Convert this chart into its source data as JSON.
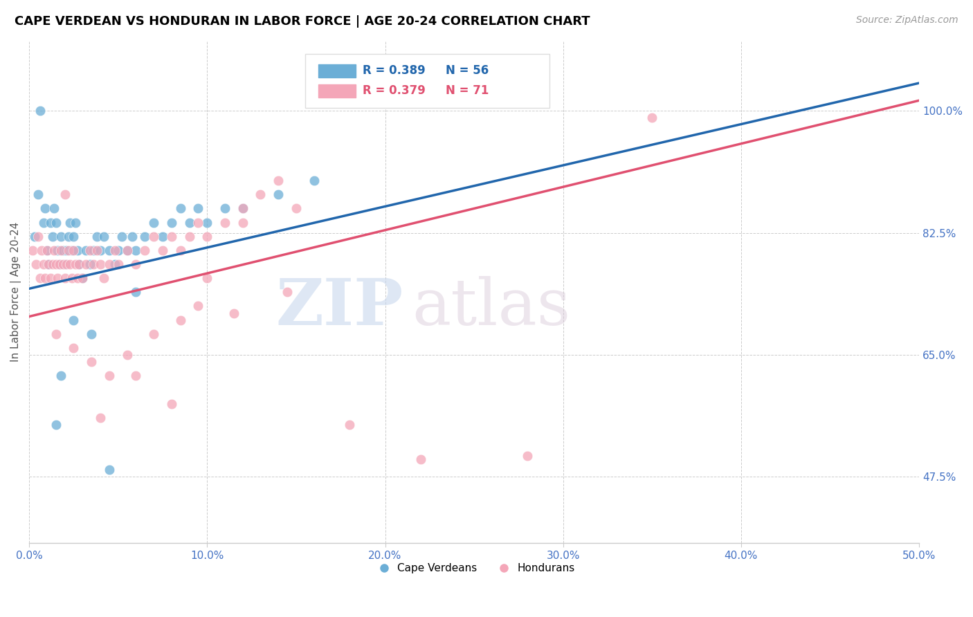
{
  "title": "CAPE VERDEAN VS HONDURAN IN LABOR FORCE | AGE 20-24 CORRELATION CHART",
  "source": "Source: ZipAtlas.com",
  "ylabel": "In Labor Force | Age 20-24",
  "xlim": [
    0.0,
    50.0
  ],
  "ylim": [
    38.0,
    110.0
  ],
  "yticks": [
    47.5,
    65.0,
    82.5,
    100.0
  ],
  "xticks": [
    0.0,
    10.0,
    20.0,
    30.0,
    40.0,
    50.0
  ],
  "xtick_labels": [
    "0.0%",
    "10.0%",
    "20.0%",
    "30.0%",
    "40.0%",
    "50.0%"
  ],
  "ytick_labels": [
    "47.5%",
    "65.0%",
    "82.5%",
    "100.0%"
  ],
  "blue_R": 0.389,
  "blue_N": 56,
  "pink_R": 0.379,
  "pink_N": 71,
  "blue_color": "#6baed6",
  "pink_color": "#f4a6b8",
  "blue_line_color": "#2166ac",
  "pink_line_color": "#e05070",
  "legend_label_blue": "Cape Verdeans",
  "legend_label_pink": "Hondurans",
  "watermark_zip": "ZIP",
  "watermark_atlas": "atlas",
  "title_fontsize": 13,
  "source_fontsize": 10,
  "blue_scatter_x": [
    0.3,
    0.5,
    0.6,
    0.8,
    0.9,
    1.0,
    1.1,
    1.2,
    1.3,
    1.4,
    1.5,
    1.6,
    1.7,
    1.8,
    1.9,
    2.0,
    2.1,
    2.2,
    2.3,
    2.4,
    2.5,
    2.6,
    2.7,
    2.8,
    3.0,
    3.2,
    3.4,
    3.6,
    3.8,
    4.0,
    4.2,
    4.5,
    4.8,
    5.0,
    5.2,
    5.5,
    5.8,
    6.0,
    6.5,
    7.0,
    7.5,
    8.0,
    8.5,
    9.0,
    9.5,
    10.0,
    11.0,
    12.0,
    14.0,
    16.0,
    1.5,
    1.8,
    2.5,
    3.5,
    4.5,
    6.0
  ],
  "blue_scatter_y": [
    82.0,
    88.0,
    100.0,
    84.0,
    86.0,
    80.0,
    78.0,
    84.0,
    82.0,
    86.0,
    84.0,
    80.0,
    78.0,
    82.0,
    80.0,
    78.0,
    80.0,
    82.0,
    84.0,
    80.0,
    82.0,
    84.0,
    80.0,
    78.0,
    76.0,
    80.0,
    78.0,
    80.0,
    82.0,
    80.0,
    82.0,
    80.0,
    78.0,
    80.0,
    82.0,
    80.0,
    82.0,
    80.0,
    82.0,
    84.0,
    82.0,
    84.0,
    86.0,
    84.0,
    86.0,
    84.0,
    86.0,
    86.0,
    88.0,
    90.0,
    55.0,
    62.0,
    70.0,
    68.0,
    48.5,
    74.0
  ],
  "pink_scatter_x": [
    0.2,
    0.4,
    0.5,
    0.6,
    0.7,
    0.8,
    0.9,
    1.0,
    1.1,
    1.2,
    1.3,
    1.4,
    1.5,
    1.6,
    1.7,
    1.8,
    1.9,
    2.0,
    2.1,
    2.2,
    2.3,
    2.4,
    2.5,
    2.6,
    2.7,
    2.8,
    3.0,
    3.2,
    3.4,
    3.6,
    3.8,
    4.0,
    4.2,
    4.5,
    4.8,
    5.0,
    5.5,
    6.0,
    6.5,
    7.0,
    7.5,
    8.0,
    8.5,
    9.0,
    9.5,
    10.0,
    11.0,
    12.0,
    13.0,
    14.0,
    1.5,
    2.5,
    3.5,
    4.5,
    5.5,
    7.0,
    8.5,
    9.5,
    11.5,
    14.5,
    2.0,
    4.0,
    6.0,
    8.0,
    10.0,
    12.0,
    15.0,
    18.0,
    22.0,
    35.0,
    28.0
  ],
  "pink_scatter_y": [
    80.0,
    78.0,
    82.0,
    76.0,
    80.0,
    78.0,
    76.0,
    80.0,
    78.0,
    76.0,
    78.0,
    80.0,
    78.0,
    76.0,
    78.0,
    80.0,
    78.0,
    76.0,
    78.0,
    80.0,
    78.0,
    76.0,
    80.0,
    78.0,
    76.0,
    78.0,
    76.0,
    78.0,
    80.0,
    78.0,
    80.0,
    78.0,
    76.0,
    78.0,
    80.0,
    78.0,
    80.0,
    78.0,
    80.0,
    82.0,
    80.0,
    82.0,
    80.0,
    82.0,
    84.0,
    82.0,
    84.0,
    86.0,
    88.0,
    90.0,
    68.0,
    66.0,
    64.0,
    62.0,
    65.0,
    68.0,
    70.0,
    72.0,
    71.0,
    74.0,
    88.0,
    56.0,
    62.0,
    58.0,
    76.0,
    84.0,
    86.0,
    55.0,
    50.0,
    99.0,
    50.5
  ],
  "blue_line": [
    [
      0.0,
      50.0
    ],
    [
      74.5,
      104.0
    ]
  ],
  "pink_line": [
    [
      0.0,
      50.0
    ],
    [
      70.5,
      101.5
    ]
  ]
}
